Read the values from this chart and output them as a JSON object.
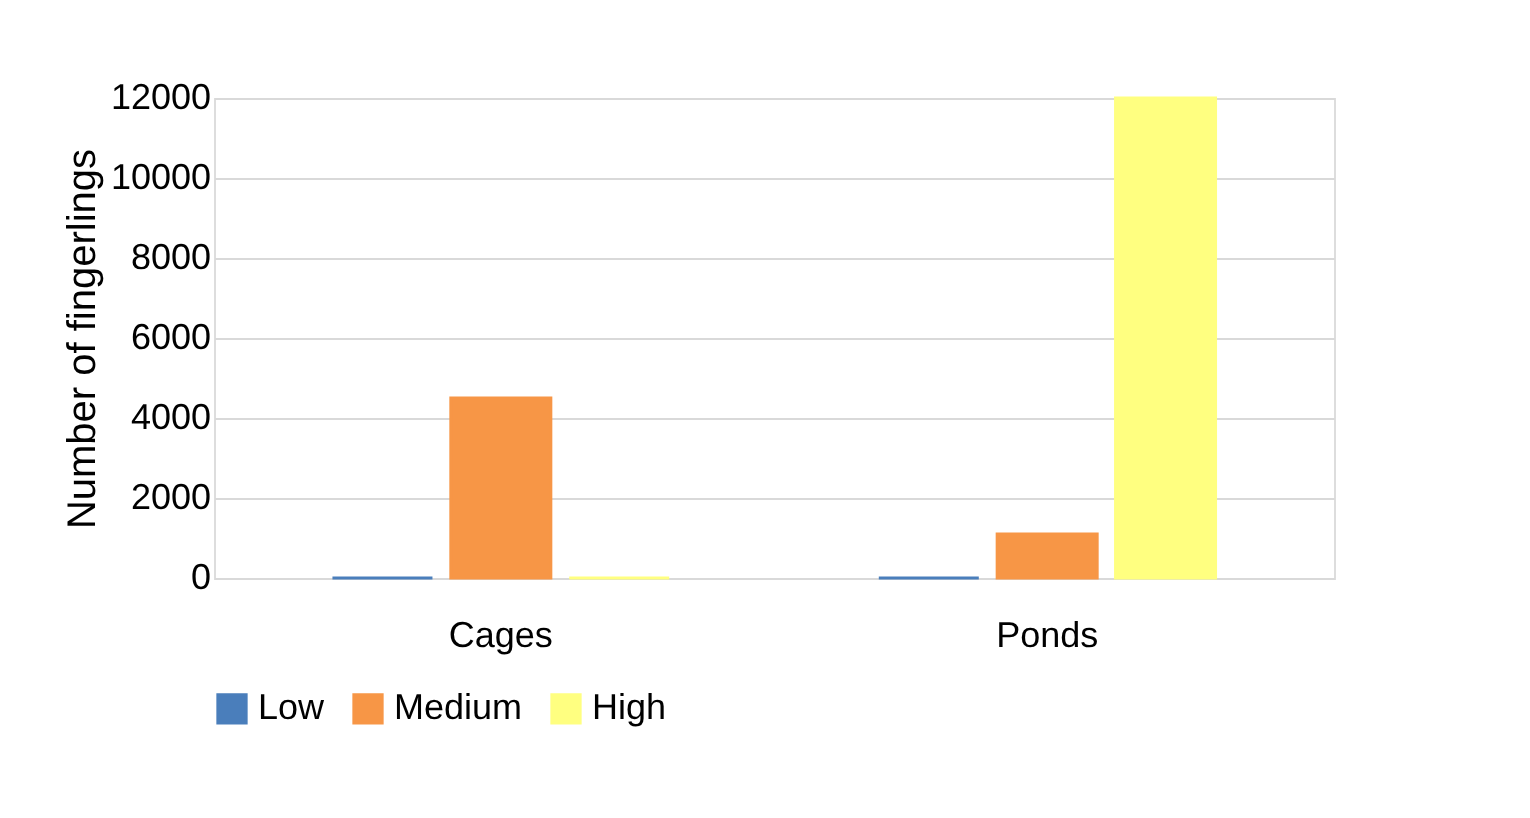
{
  "chart_data": {
    "type": "bar",
    "ylabel": "Number of fingerlings",
    "categories": [
      "Cages",
      "Ponds"
    ],
    "series": [
      {
        "name": "Low",
        "color": "#4a7ebb",
        "values": [
          0,
          0
        ]
      },
      {
        "name": "Medium",
        "color": "#f79646",
        "values": [
          4500,
          1100
        ]
      },
      {
        "name": "High",
        "color": "#ffff80",
        "values": [
          0,
          12000
        ]
      }
    ],
    "ylim": [
      0,
      12000
    ],
    "yticks": [
      0,
      2000,
      4000,
      6000,
      8000,
      10000,
      12000
    ],
    "grid": "y",
    "legend": "bottom"
  }
}
